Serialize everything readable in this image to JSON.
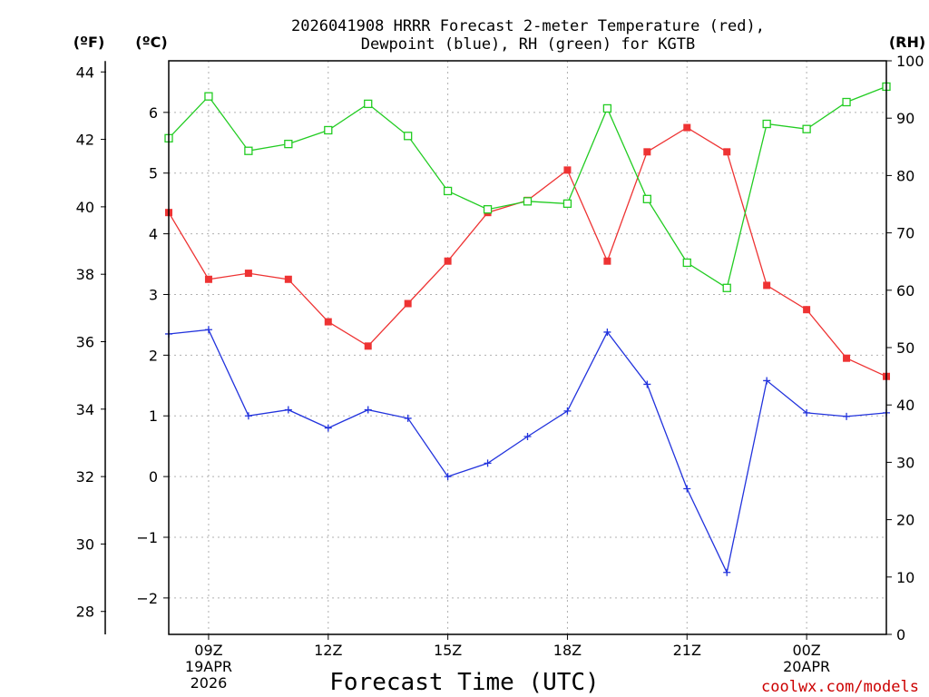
{
  "chart_data": {
    "type": "line",
    "title_line1": "2026041908 HRRR Forecast 2-meter Temperature (red),",
    "title_line2": "Dewpoint (blue), RH (green) for KGTB",
    "units": {
      "left_f": "(ºF)",
      "left_c": "(ºC)",
      "right": "(RH)"
    },
    "xlabel": "Forecast Time (UTC)",
    "credit": "coolwx.com/models",
    "x_hours": [
      8,
      9,
      10,
      11,
      12,
      13,
      14,
      15,
      16,
      17,
      18,
      19,
      20,
      21,
      22,
      23,
      24,
      25,
      26
    ],
    "xlim": [
      8,
      26
    ],
    "x_ticks": [
      {
        "x": 9,
        "lines": [
          "09Z",
          "19APR",
          "2026"
        ]
      },
      {
        "x": 12,
        "lines": [
          "12Z"
        ]
      },
      {
        "x": 15,
        "lines": [
          "15Z"
        ]
      },
      {
        "x": 18,
        "lines": [
          "18Z"
        ]
      },
      {
        "x": 21,
        "lines": [
          "21Z"
        ]
      },
      {
        "x": 24,
        "lines": [
          "00Z",
          "20APR"
        ]
      }
    ],
    "c_axis": {
      "ylim": [
        -2.6,
        6.85
      ],
      "ticks": [
        -2,
        -1,
        0,
        1,
        2,
        3,
        4,
        5,
        6
      ]
    },
    "f_axis": {
      "ticks": [
        28,
        30,
        32,
        34,
        36,
        38,
        40,
        42,
        44
      ]
    },
    "rh_axis": {
      "ylim": [
        0,
        100
      ],
      "ticks": [
        0,
        10,
        20,
        30,
        40,
        50,
        60,
        70,
        80,
        90,
        100
      ]
    },
    "series": [
      {
        "name": "Temperature",
        "axis": "c",
        "color": "#ee3333",
        "marker": "filled-square",
        "values": [
          4.35,
          3.25,
          3.35,
          3.25,
          2.55,
          2.15,
          2.85,
          3.55,
          4.35,
          4.55,
          5.05,
          3.55,
          5.35,
          5.75,
          5.35,
          3.15,
          2.75,
          1.95,
          1.65
        ]
      },
      {
        "name": "Dewpoint",
        "axis": "c",
        "color": "#2233dd",
        "marker": "plus",
        "values": [
          2.35,
          2.42,
          1.0,
          1.1,
          0.8,
          1.1,
          0.96,
          0.0,
          0.22,
          0.66,
          1.08,
          2.38,
          1.52,
          -0.2,
          -1.58,
          1.58,
          1.05,
          0.99,
          1.05
        ]
      },
      {
        "name": "RH",
        "axis": "rh",
        "color": "#22cc22",
        "marker": "open-square",
        "values": [
          86.5,
          93.8,
          84.3,
          85.5,
          87.9,
          92.5,
          86.9,
          77.3,
          74.1,
          75.5,
          75.1,
          91.7,
          75.9,
          64.8,
          60.4,
          89.0,
          88.1,
          92.8,
          95.5
        ]
      }
    ]
  }
}
